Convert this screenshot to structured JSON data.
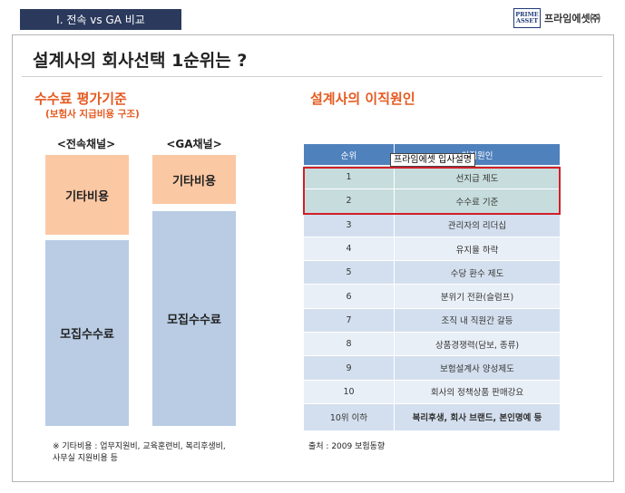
{
  "header": {
    "section_tab": "I. 전속 vs GA 비교",
    "logo_mark_line1": "PRIME",
    "logo_mark_line2": "ASSET",
    "logo_text": "프라임에셋㈜"
  },
  "title": "설계사의 회사선택 1순위는 ?",
  "left": {
    "heading": "수수료 평가기준",
    "subheading": "(보험사 지급비용 구조)",
    "columns": [
      {
        "label": "<전속채널>",
        "other": "기타비용",
        "recruit": "모집수수료"
      },
      {
        "label": "<GA채널>",
        "other": "기타비용",
        "recruit": "모집수수료"
      }
    ],
    "footnote_line1": "※ 기타비용 : 업무지원비, 교육훈련비, 복리후생비,",
    "footnote_line2": "사무실 지원비용 등"
  },
  "right": {
    "heading": "설계사의 이직원인",
    "table_headers": [
      "순위",
      "이직원인"
    ],
    "rows": [
      {
        "rank": "1",
        "reason": "선지급 제도"
      },
      {
        "rank": "2",
        "reason": "수수료 기준"
      },
      {
        "rank": "3",
        "reason": "관리자의 리더십"
      },
      {
        "rank": "4",
        "reason": "유지율 하락"
      },
      {
        "rank": "5",
        "reason": "수당 환수 제도"
      },
      {
        "rank": "6",
        "reason": "분위기 전환(슬럼프)"
      },
      {
        "rank": "7",
        "reason": "조직 내 직원간 갈등"
      },
      {
        "rank": "8",
        "reason": "상품경쟁력(담보, 종류)"
      },
      {
        "rank": "9",
        "reason": "보험설계사 양성제도"
      },
      {
        "rank": "10",
        "reason": "회사의 정책상품 판매강요"
      },
      {
        "rank": "10위 이하",
        "reason": "복리후생, 회사 브랜드, 본인명예 등"
      }
    ],
    "tooltip": "프라임에셋 입사설명",
    "source": "출처 : 2009 보험동향"
  },
  "colors": {
    "section_tab_bg": "#2b3a5c",
    "heading_orange": "#e55a20",
    "other_cost_box": "#fbc8a4",
    "recruit_fee_box": "#b9cce4",
    "table_header": "#4f81bd",
    "highlight_border": "#d0202a"
  }
}
